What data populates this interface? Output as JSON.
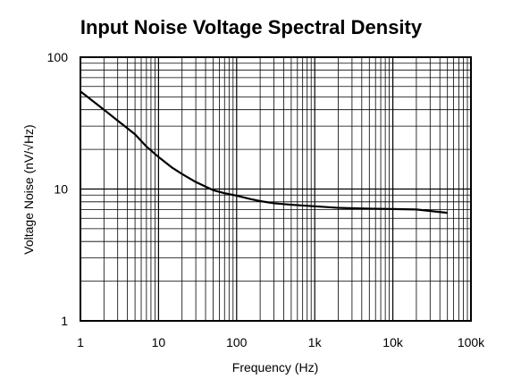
{
  "chart_data": {
    "type": "line",
    "title": "Input Noise Voltage Spectral Density",
    "xlabel": "Frequency (Hz)",
    "ylabel": "Voltage Noise (nV/√Hz)",
    "x_scale": "log",
    "y_scale": "log",
    "xlim": [
      1,
      100000
    ],
    "ylim": [
      1,
      100
    ],
    "grid": true,
    "x_ticks": [
      1,
      10,
      100,
      1000,
      10000,
      100000
    ],
    "x_tick_labels": [
      "1",
      "10",
      "100",
      "1k",
      "10k",
      "100k"
    ],
    "y_ticks": [
      1,
      10,
      100
    ],
    "y_tick_labels": [
      "1",
      "10",
      "100"
    ],
    "series": [
      {
        "x": [
          1,
          2,
          3,
          5,
          7,
          10,
          15,
          20,
          30,
          50,
          70,
          100,
          150,
          200,
          300,
          500,
          700,
          1000,
          2000,
          3000,
          5000,
          10000,
          20000,
          50000
        ],
        "y": [
          55,
          40,
          33,
          26,
          21,
          17.5,
          14.5,
          13,
          11.3,
          9.8,
          9.3,
          8.9,
          8.4,
          8.1,
          7.8,
          7.6,
          7.5,
          7.4,
          7.2,
          7.15,
          7.1,
          7.05,
          7.0,
          6.6
        ],
        "color": "#000000"
      }
    ]
  }
}
